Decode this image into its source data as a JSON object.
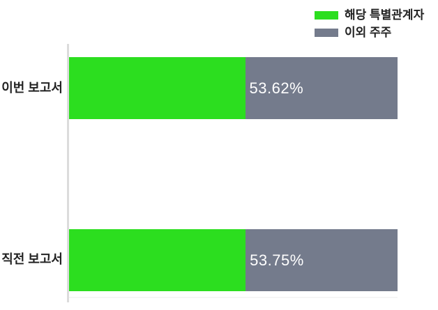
{
  "colors": {
    "series_green": "#2CDE1F",
    "series_gray": "#747B8C",
    "axis_line": "#DCDCDC",
    "category_text": "#222222",
    "value_text": "#FFFFFF",
    "background": "#FFFFFF"
  },
  "legend": {
    "items": [
      {
        "label": "해당 특별관계자",
        "color": "#2CDE1F"
      },
      {
        "label": "이외 주주",
        "color": "#747B8C"
      }
    ]
  },
  "chart_data": {
    "type": "bar",
    "orientation": "horizontal",
    "stacked": true,
    "categories": [
      "이번 보고서",
      "직전 보고서"
    ],
    "series": [
      {
        "name": "해당 특별관계자",
        "color": "#2CDE1F",
        "values": [
          53.62,
          53.75
        ]
      },
      {
        "name": "이외 주주",
        "color": "#747B8C",
        "values": [
          46.38,
          46.25
        ]
      }
    ],
    "value_labels": [
      "53.62%",
      "53.75%"
    ],
    "xlim": [
      0,
      100
    ],
    "grid": false,
    "legend_position": "top-right"
  },
  "rows": [
    {
      "category": "이번 보고서",
      "green_pct": 53.62,
      "value_label": "53.62%"
    },
    {
      "category": "직전 보고서",
      "green_pct": 53.75,
      "value_label": "53.75%"
    }
  ]
}
